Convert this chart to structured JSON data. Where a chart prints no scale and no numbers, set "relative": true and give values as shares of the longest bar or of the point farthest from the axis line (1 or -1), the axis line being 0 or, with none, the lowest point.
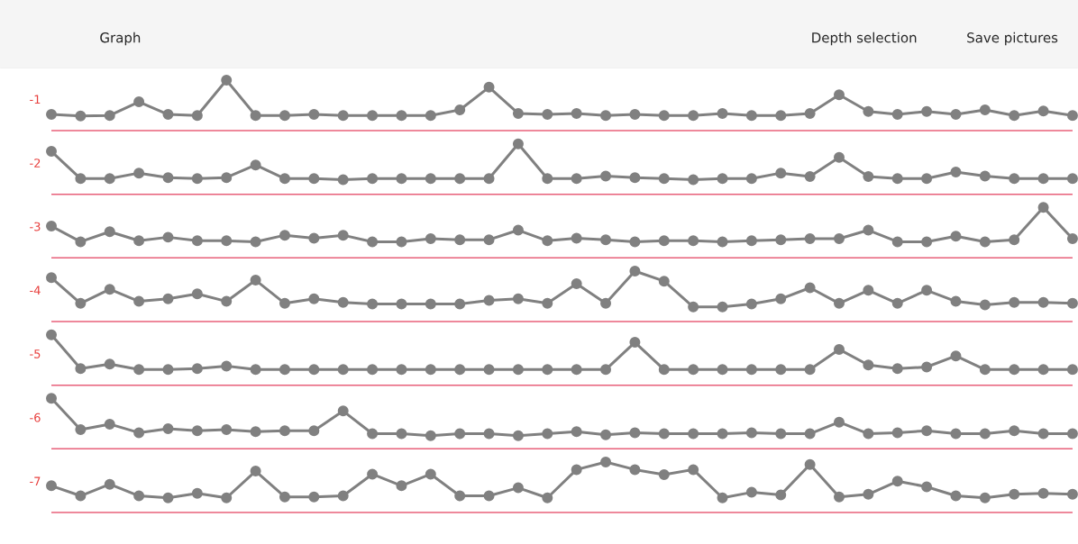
{
  "chart_data": [
    {
      "type": "line",
      "relative": true,
      "title": "Graph",
      "annotations": [
        "Depth selection",
        "Save pictures"
      ],
      "ylabel": "-1",
      "color": "#808080",
      "marker": "circle",
      "categories": [
        null,
        null,
        null,
        null,
        null,
        null,
        null,
        null,
        null,
        null,
        null,
        null,
        null,
        null,
        null,
        null,
        null,
        null,
        null,
        null,
        null,
        null,
        null,
        null,
        null,
        null,
        null,
        null,
        null,
        null,
        null,
        null,
        null,
        null,
        null,
        null
      ],
      "values": [
        0.32,
        0.29,
        0.3,
        0.57,
        0.32,
        0.3,
        1,
        0.3,
        0.3,
        0.32,
        0.3,
        0.3,
        0.3,
        0.3,
        0.41,
        0.86,
        0.34,
        0.32,
        0.34,
        0.3,
        0.32,
        0.3,
        0.3,
        0.34,
        0.3,
        0.3,
        0.34,
        0.71,
        0.38,
        0.32,
        0.38,
        0.32,
        0.41,
        0.3,
        0.39,
        0.3
      ]
    },
    {
      "type": "line",
      "relative": true,
      "ylabel": "-2",
      "color": "#808080",
      "marker": "circle",
      "categories": [
        null,
        null,
        null,
        null,
        null,
        null,
        null,
        null,
        null,
        null,
        null,
        null,
        null,
        null,
        null,
        null,
        null,
        null,
        null,
        null,
        null,
        null,
        null,
        null,
        null,
        null,
        null,
        null,
        null,
        null,
        null,
        null,
        null,
        null,
        null,
        null
      ],
      "values": [
        0.85,
        0.31,
        0.31,
        0.42,
        0.33,
        0.31,
        0.33,
        0.58,
        0.31,
        0.31,
        0.29,
        0.31,
        0.31,
        0.31,
        0.31,
        0.31,
        1,
        0.31,
        0.31,
        0.36,
        0.33,
        0.31,
        0.29,
        0.31,
        0.31,
        0.42,
        0.35,
        0.73,
        0.35,
        0.31,
        0.31,
        0.44,
        0.36,
        0.31,
        0.31,
        0.31
      ]
    },
    {
      "type": "line",
      "relative": true,
      "ylabel": "-3",
      "color": "#808080",
      "marker": "circle",
      "categories": [
        null,
        null,
        null,
        null,
        null,
        null,
        null,
        null,
        null,
        null,
        null,
        null,
        null,
        null,
        null,
        null,
        null,
        null,
        null,
        null,
        null,
        null,
        null,
        null,
        null,
        null,
        null,
        null,
        null,
        null,
        null,
        null,
        null,
        null,
        null,
        null
      ],
      "values": [
        0.63,
        0.32,
        0.52,
        0.34,
        0.41,
        0.34,
        0.34,
        0.32,
        0.45,
        0.39,
        0.45,
        0.32,
        0.32,
        0.38,
        0.36,
        0.36,
        0.55,
        0.34,
        0.39,
        0.36,
        0.32,
        0.34,
        0.34,
        0.32,
        0.34,
        0.36,
        0.38,
        0.38,
        0.55,
        0.32,
        0.32,
        0.43,
        0.32,
        0.36,
        1,
        0.38
      ]
    },
    {
      "type": "line",
      "relative": true,
      "ylabel": "-4",
      "color": "#808080",
      "marker": "circle",
      "categories": [
        null,
        null,
        null,
        null,
        null,
        null,
        null,
        null,
        null,
        null,
        null,
        null,
        null,
        null,
        null,
        null,
        null,
        null,
        null,
        null,
        null,
        null,
        null,
        null,
        null,
        null,
        null,
        null,
        null,
        null,
        null,
        null,
        null,
        null,
        null,
        null
      ],
      "values": [
        0.87,
        0.36,
        0.64,
        0.4,
        0.45,
        0.55,
        0.4,
        0.82,
        0.36,
        0.45,
        0.38,
        0.35,
        0.35,
        0.35,
        0.35,
        0.42,
        0.45,
        0.36,
        0.75,
        0.36,
        1,
        0.8,
        0.29,
        0.29,
        0.35,
        0.45,
        0.67,
        0.36,
        0.62,
        0.36,
        0.62,
        0.4,
        0.33,
        0.38,
        0.38,
        0.36
      ]
    },
    {
      "type": "line",
      "relative": true,
      "ylabel": "-5",
      "color": "#808080",
      "marker": "circle",
      "categories": [
        null,
        null,
        null,
        null,
        null,
        null,
        null,
        null,
        null,
        null,
        null,
        null,
        null,
        null,
        null,
        null,
        null,
        null,
        null,
        null,
        null,
        null,
        null,
        null,
        null,
        null,
        null,
        null,
        null,
        null,
        null,
        null,
        null,
        null,
        null,
        null
      ],
      "values": [
        1,
        0.33,
        0.42,
        0.31,
        0.31,
        0.33,
        0.38,
        0.31,
        0.31,
        0.31,
        0.31,
        0.31,
        0.31,
        0.31,
        0.31,
        0.31,
        0.31,
        0.31,
        0.31,
        0.31,
        0.85,
        0.31,
        0.31,
        0.31,
        0.31,
        0.31,
        0.31,
        0.71,
        0.4,
        0.33,
        0.36,
        0.58,
        0.31,
        0.31,
        0.31,
        0.31
      ]
    },
    {
      "type": "line",
      "relative": true,
      "ylabel": "-6",
      "color": "#808080",
      "marker": "circle",
      "categories": [
        null,
        null,
        null,
        null,
        null,
        null,
        null,
        null,
        null,
        null,
        null,
        null,
        null,
        null,
        null,
        null,
        null,
        null,
        null,
        null,
        null,
        null,
        null,
        null,
        null,
        null,
        null,
        null,
        null,
        null,
        null,
        null,
        null,
        null,
        null,
        null
      ],
      "values": [
        1,
        0.38,
        0.49,
        0.32,
        0.4,
        0.36,
        0.38,
        0.34,
        0.36,
        0.36,
        0.75,
        0.3,
        0.3,
        0.26,
        0.3,
        0.3,
        0.26,
        0.3,
        0.34,
        0.28,
        0.32,
        0.3,
        0.3,
        0.3,
        0.32,
        0.3,
        0.3,
        0.53,
        0.3,
        0.32,
        0.36,
        0.3,
        0.3,
        0.36,
        0.3,
        0.3
      ]
    },
    {
      "type": "line",
      "relative": true,
      "ylabel": "-7",
      "color": "#808080",
      "marker": "circle",
      "categories": [
        null,
        null,
        null,
        null,
        null,
        null,
        null,
        null,
        null,
        null,
        null,
        null,
        null,
        null,
        null,
        null,
        null,
        null,
        null,
        null,
        null,
        null,
        null,
        null,
        null,
        null,
        null,
        null,
        null,
        null,
        null,
        null,
        null,
        null,
        null,
        null
      ],
      "values": [
        0.53,
        0.33,
        0.56,
        0.33,
        0.29,
        0.38,
        0.29,
        0.82,
        0.31,
        0.31,
        0.33,
        0.76,
        0.53,
        0.76,
        0.33,
        0.33,
        0.49,
        0.29,
        0.85,
        1,
        0.85,
        0.75,
        0.85,
        0.29,
        0.4,
        0.35,
        0.95,
        0.31,
        0.36,
        0.62,
        0.51,
        0.33,
        0.29,
        0.36,
        0.38,
        0.36
      ]
    }
  ]
}
